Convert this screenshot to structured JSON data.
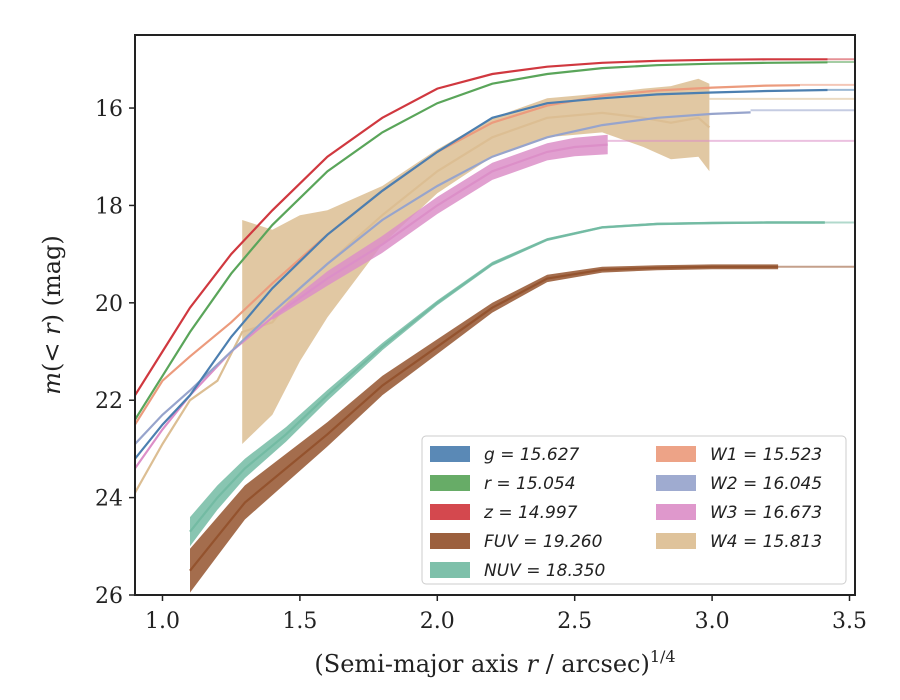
{
  "chart_data": {
    "type": "line",
    "xlabel": "(Semi-major axis r / arcsec)^{1/4}",
    "ylabel": "m(< r) (mag)",
    "xlim": [
      0.9,
      3.52
    ],
    "ylim": [
      26,
      14.5
    ],
    "y_inverted": true,
    "x_ticks": [
      "1.0",
      "1.5",
      "2.0",
      "2.5",
      "3.0",
      "3.5"
    ],
    "y_ticks": [
      "16",
      "18",
      "20",
      "22",
      "24",
      "26"
    ],
    "grid": false,
    "legend_placement": "lower-right",
    "legend": [
      {
        "label": "g = 15.627",
        "color": "#4c7fb0"
      },
      {
        "label": "r = 15.054",
        "color": "#5aa55a"
      },
      {
        "label": "z = 14.997",
        "color": "#d0383f"
      },
      {
        "label": "FUV = 19.260",
        "color": "#94532e"
      },
      {
        "label": "NUV = 18.350",
        "color": "#73bba3"
      },
      {
        "label": "W1 = 15.523",
        "color": "#ec9b7d"
      },
      {
        "label": "W2 = 16.045",
        "color": "#97a4cc"
      },
      {
        "label": "W3 = 16.673",
        "color": "#dc8fc8"
      },
      {
        "label": "W4 = 15.813",
        "color": "#dcbe93"
      }
    ],
    "series": [
      {
        "name": "g = 15.627",
        "color": "#4c7fb0",
        "x": [
          0.9,
          1.0,
          1.1,
          1.25,
          1.4,
          1.6,
          1.8,
          2.0,
          2.2,
          2.4,
          2.6,
          2.8,
          3.0,
          3.2,
          3.42
        ],
        "y": [
          23.2,
          22.5,
          21.9,
          20.7,
          19.7,
          18.6,
          17.7,
          16.9,
          16.2,
          15.9,
          15.8,
          15.72,
          15.68,
          15.65,
          15.63
        ],
        "width": [
          0,
          0,
          0,
          0,
          0,
          0,
          0,
          0,
          0,
          0,
          0,
          0,
          0,
          0,
          0
        ],
        "tail": 15.627
      },
      {
        "name": "r = 15.054",
        "color": "#5aa55a",
        "x": [
          0.9,
          1.0,
          1.1,
          1.25,
          1.4,
          1.6,
          1.8,
          2.0,
          2.2,
          2.4,
          2.6,
          2.8,
          3.0,
          3.2,
          3.42
        ],
        "y": [
          22.4,
          21.5,
          20.6,
          19.4,
          18.4,
          17.3,
          16.5,
          15.9,
          15.5,
          15.3,
          15.18,
          15.12,
          15.09,
          15.07,
          15.06
        ],
        "width": [
          0,
          0,
          0,
          0,
          0,
          0,
          0,
          0,
          0,
          0,
          0,
          0,
          0,
          0,
          0
        ],
        "tail": 15.054
      },
      {
        "name": "z = 14.997",
        "color": "#d0383f",
        "x": [
          0.9,
          1.0,
          1.1,
          1.25,
          1.4,
          1.6,
          1.8,
          2.0,
          2.2,
          2.4,
          2.6,
          2.8,
          3.0,
          3.2,
          3.42
        ],
        "y": [
          21.9,
          21.0,
          20.1,
          19.0,
          18.1,
          17.0,
          16.2,
          15.6,
          15.3,
          15.15,
          15.07,
          15.03,
          15.01,
          15.0,
          15.0
        ],
        "width": [
          0,
          0,
          0,
          0,
          0,
          0,
          0,
          0,
          0,
          0,
          0,
          0,
          0,
          0,
          0
        ],
        "tail": 14.997
      },
      {
        "name": "FUV = 19.260",
        "color": "#94532e",
        "x": [
          1.1,
          1.2,
          1.3,
          1.45,
          1.6,
          1.8,
          2.0,
          2.2,
          2.4,
          2.6,
          2.8,
          3.0,
          3.24
        ],
        "y": [
          25.5,
          24.8,
          24.1,
          23.4,
          22.7,
          21.7,
          20.9,
          20.1,
          19.5,
          19.32,
          19.28,
          19.26,
          19.26
        ],
        "width": [
          0.9,
          0.8,
          0.7,
          0.6,
          0.5,
          0.4,
          0.3,
          0.2,
          0.15,
          0.12,
          0.1,
          0.1,
          0.1
        ],
        "tail": 19.26
      },
      {
        "name": "NUV = 18.350",
        "color": "#73bba3",
        "x": [
          1.1,
          1.2,
          1.3,
          1.45,
          1.6,
          1.8,
          2.0,
          2.2,
          2.4,
          2.6,
          2.8,
          3.0,
          3.2,
          3.41
        ],
        "y": [
          24.7,
          24.0,
          23.4,
          22.7,
          21.9,
          20.9,
          20.0,
          19.2,
          18.7,
          18.45,
          18.38,
          18.36,
          18.35,
          18.35
        ],
        "width": [
          0.6,
          0.5,
          0.4,
          0.3,
          0.22,
          0.15,
          0.1,
          0.08,
          0.06,
          0.05,
          0.05,
          0.05,
          0.05,
          0.05
        ],
        "tail": 18.35
      },
      {
        "name": "W1 = 15.523",
        "color": "#ec9b7d",
        "x": [
          0.9,
          1.0,
          1.1,
          1.25,
          1.4,
          1.6,
          1.8,
          2.0,
          2.2,
          2.4,
          2.6,
          2.8,
          3.0,
          3.2,
          3.32
        ],
        "y": [
          22.5,
          21.6,
          21.1,
          20.4,
          19.6,
          18.6,
          17.7,
          16.9,
          16.3,
          15.95,
          15.75,
          15.64,
          15.58,
          15.54,
          15.53
        ],
        "width": [
          0,
          0,
          0,
          0,
          0,
          0,
          0,
          0,
          0,
          0,
          0,
          0,
          0,
          0,
          0
        ],
        "tail": 15.523
      },
      {
        "name": "W2 = 16.045",
        "color": "#97a4cc",
        "x": [
          0.9,
          1.0,
          1.1,
          1.25,
          1.4,
          1.6,
          1.8,
          2.0,
          2.2,
          2.4,
          2.6,
          2.8,
          3.0,
          3.14
        ],
        "y": [
          22.9,
          22.3,
          21.8,
          21.0,
          20.2,
          19.2,
          18.3,
          17.6,
          17.0,
          16.6,
          16.35,
          16.2,
          16.12,
          16.09
        ],
        "width": [
          0,
          0,
          0,
          0,
          0,
          0,
          0,
          0,
          0,
          0,
          0,
          0,
          0,
          0
        ],
        "tail": 16.045
      },
      {
        "name": "W3 = 16.673",
        "color": "#dc8fc8",
        "x": [
          0.9,
          1.0,
          1.1,
          1.25,
          1.4,
          1.6,
          1.8,
          2.0,
          2.2,
          2.4,
          2.5,
          2.62
        ],
        "y": [
          23.4,
          22.6,
          21.9,
          21.0,
          20.3,
          19.5,
          18.8,
          18.0,
          17.3,
          16.9,
          16.8,
          16.75
        ],
        "width": [
          0,
          0,
          0,
          0,
          0.1,
          0.3,
          0.35,
          0.35,
          0.35,
          0.35,
          0.38,
          0.4
        ],
        "tail": 16.673
      },
      {
        "name": "W4 = 15.813",
        "color": "#dcbe93",
        "x": [
          0.9,
          1.0,
          1.1,
          1.2,
          1.29,
          1.4,
          1.5,
          1.6,
          1.8,
          2.0,
          2.2,
          2.4,
          2.6,
          2.75,
          2.85,
          2.95,
          2.99
        ],
        "y": [
          23.9,
          22.9,
          22.0,
          21.6,
          20.6,
          20.4,
          19.7,
          19.2,
          18.2,
          17.3,
          16.6,
          16.2,
          16.1,
          16.2,
          16.3,
          16.2,
          16.4
        ],
        "width": [
          0,
          0,
          0,
          0,
          4.6,
          3.8,
          3.0,
          2.2,
          1.2,
          0.9,
          0.8,
          0.8,
          0.8,
          1.2,
          1.5,
          1.6,
          1.8
        ],
        "tail": 15.813
      }
    ]
  }
}
